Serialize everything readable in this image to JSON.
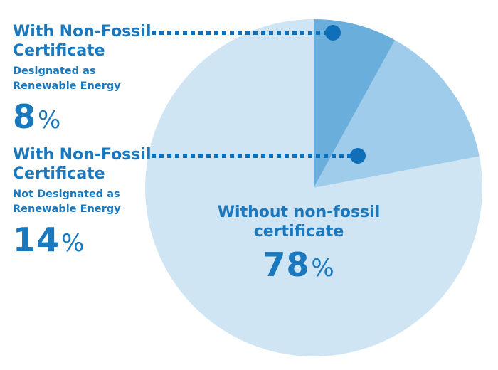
{
  "chart_data": {
    "type": "pie",
    "slices": [
      {
        "label": "With Non-Fossil Certificate",
        "sublabel": "Designated as Renewable Energy",
        "value": 8,
        "unit": "%",
        "color": "#6aafdb"
      },
      {
        "label": "With Non-Fossil Certificate",
        "sublabel": "Not Designated as Renewable Energy",
        "value": 14,
        "unit": "%",
        "color": "#a0cceb"
      },
      {
        "label": "Without non-fossil certificate",
        "sublabel": "",
        "value": 78,
        "unit": "%",
        "color": "#cfe5f4"
      }
    ],
    "label_color": "#1a78be",
    "leader_color": "#0f6fb9"
  }
}
